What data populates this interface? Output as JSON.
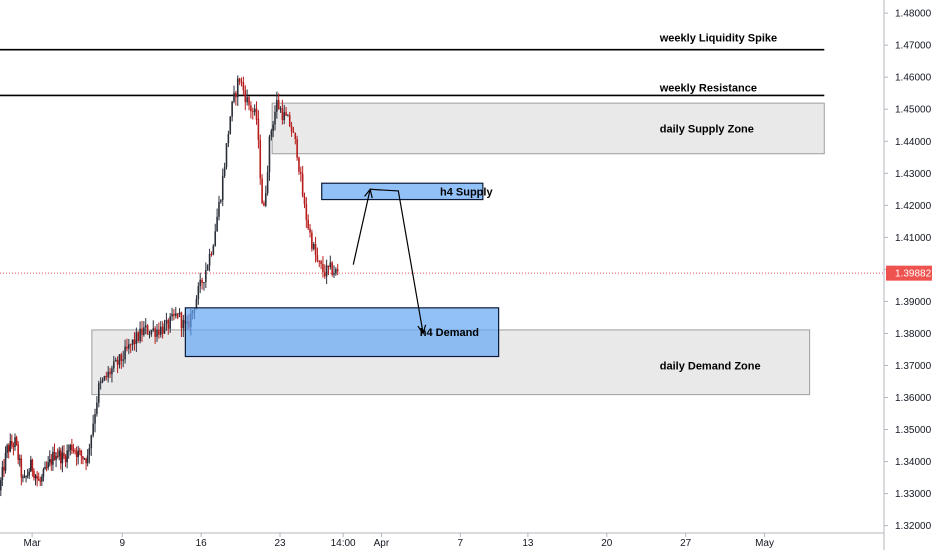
{
  "chart_data": {
    "type": "candlestick",
    "instrument_hint": "",
    "y_axis": {
      "ylim": [
        1.3177,
        1.4841
      ],
      "ticks": [
        "1.32000",
        "1.33000",
        "1.34000",
        "1.35000",
        "1.36000",
        "1.37000",
        "1.38000",
        "1.39000",
        "1.40000",
        "1.41000",
        "1.42000",
        "1.43000",
        "1.44000",
        "1.45000",
        "1.46000",
        "1.47000",
        "1.48000"
      ],
      "tick_values": [
        1.32,
        1.33,
        1.34,
        1.35,
        1.36,
        1.37,
        1.38,
        1.39,
        1.4,
        1.41,
        1.42,
        1.43,
        1.44,
        1.45,
        1.46,
        1.47,
        1.48
      ]
    },
    "x_axis": {
      "labels": [
        "Mar",
        "9",
        "16",
        "23",
        "14:00",
        "Apr",
        "7",
        "13",
        "20",
        "27",
        "May"
      ],
      "day_index": [
        0,
        8,
        15,
        22,
        27.6,
        31,
        38,
        44,
        51,
        58,
        65
      ],
      "xlim_days": [
        -2.85,
        75.6
      ]
    },
    "current_price": {
      "label": "1.39882",
      "value": 1.39882,
      "color": "#ef5350"
    },
    "lines": [
      {
        "name": "weekly Liquidity Spike",
        "label": "weekly Liquidity Spike",
        "price": 1.4686,
        "from_day": -2.85,
        "to_day": 70.3
      },
      {
        "name": "weekly Resistance",
        "label": "weekly Resistance",
        "price": 1.4543,
        "from_day": -2.85,
        "to_day": 70.3
      }
    ],
    "zones": [
      {
        "name": "daily Supply Zone",
        "label": "daily Supply Zone",
        "from_day": 21.3,
        "to_day": 70.3,
        "top": 1.4519,
        "bottom": 1.4361,
        "style": "grey"
      },
      {
        "name": "daily Demand Zone",
        "label": "daily Demand Zone",
        "from_day": 5.3,
        "to_day": 69.0,
        "top": 1.3811,
        "bottom": 1.3609,
        "style": "grey"
      },
      {
        "name": "h4 Supply",
        "label": "h4 Supply",
        "from_day": 25.7,
        "to_day": 40.0,
        "top": 1.4269,
        "bottom": 1.4218,
        "style": "blue"
      },
      {
        "name": "h4 Demand",
        "label": "h4 Demand",
        "from_day": 13.6,
        "to_day": 41.4,
        "top": 1.388,
        "bottom": 1.3728,
        "style": "blue"
      }
    ],
    "projection_path": [
      {
        "day": 28.5,
        "price": 1.4015
      },
      {
        "day": 30.0,
        "price": 1.425
      },
      {
        "day": 32.5,
        "price": 1.4245
      },
      {
        "day": 34.7,
        "price": 1.38
      }
    ],
    "candles_segments": [
      {
        "start_day": -2.85,
        "end_day": 5.0,
        "count": 56,
        "points": [
          1.331,
          1.344,
          1.346,
          1.333,
          1.339,
          1.333,
          1.338,
          1.343,
          1.341,
          1.345,
          1.342,
          1.341
        ]
      },
      {
        "start_day": 5.0,
        "end_day": 13.0,
        "count": 48,
        "points": [
          1.342,
          1.363,
          1.368,
          1.372,
          1.377,
          1.381,
          1.381,
          1.382,
          1.386
        ]
      },
      {
        "start_day": 13.0,
        "end_day": 20.0,
        "count": 42,
        "points": [
          1.386,
          1.381,
          1.39,
          1.398,
          1.408,
          1.425,
          1.448,
          1.46,
          1.452,
          1.447
        ]
      },
      {
        "start_day": 20.0,
        "end_day": 27.2,
        "count": 44,
        "points": [
          1.447,
          1.416,
          1.442,
          1.452,
          1.448,
          1.445,
          1.437,
          1.42,
          1.41,
          1.402,
          1.399,
          1.4,
          1.3988
        ]
      }
    ],
    "candle_colors": {
      "up": "#2a2e39",
      "down": "#b71c1c"
    }
  }
}
